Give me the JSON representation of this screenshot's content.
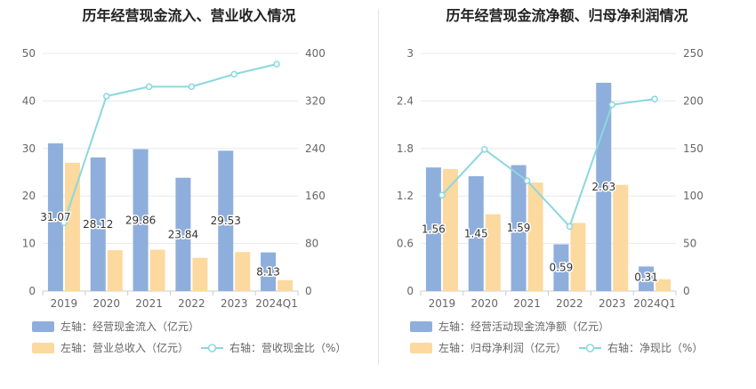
{
  "chart_data": [
    {
      "type": "bar",
      "title": "历年经营现金流入、营业收入情况",
      "categories": [
        "2019",
        "2020",
        "2021",
        "2022",
        "2023",
        "2024Q1"
      ],
      "left_axis": {
        "ticks": [
          "0",
          "10",
          "20",
          "30",
          "40",
          "50"
        ],
        "ylim": [
          0,
          50
        ]
      },
      "right_axis": {
        "ticks": [
          "0",
          "80",
          "160",
          "240",
          "320",
          "400"
        ],
        "ylim": [
          0,
          400
        ]
      },
      "series": [
        {
          "name": "左轴：经营现金流入（亿元）",
          "type": "bar",
          "axis": "left",
          "color": "#8eaedc",
          "values": [
            31.07,
            28.12,
            29.86,
            23.84,
            29.53,
            8.13
          ],
          "labels": [
            "31.07",
            "28.12",
            "29.86",
            "23.84",
            "29.53",
            "8.13"
          ]
        },
        {
          "name": "左轴：营业总收入（亿元）",
          "type": "bar",
          "axis": "left",
          "color": "#fcd99e",
          "values": [
            27.0,
            8.6,
            8.7,
            7.0,
            8.2,
            2.3
          ]
        },
        {
          "name": "右轴：营收现金比（%）",
          "type": "line",
          "axis": "right",
          "color": "#8ad8de",
          "values": [
            115,
            328,
            344,
            344,
            365,
            382
          ]
        }
      ],
      "grid": true,
      "legend_position": "bottom"
    },
    {
      "type": "bar",
      "title": "历年经营现金流净额、归母净利润情况",
      "categories": [
        "2019",
        "2020",
        "2021",
        "2022",
        "2023",
        "2024Q1"
      ],
      "left_axis": {
        "ticks": [
          "0",
          "0.6",
          "1.2",
          "1.8",
          "2.4",
          "3"
        ],
        "ylim": [
          0,
          3
        ]
      },
      "right_axis": {
        "ticks": [
          "0",
          "50",
          "100",
          "150",
          "200",
          "250"
        ],
        "ylim": [
          0,
          250
        ]
      },
      "series": [
        {
          "name": "左轴：经营活动现金流净额（亿元）",
          "type": "bar",
          "axis": "left",
          "color": "#8eaedc",
          "values": [
            1.56,
            1.45,
            1.59,
            0.59,
            2.63,
            0.31
          ],
          "labels": [
            "1.56",
            "1.45",
            "1.59",
            "0.59",
            "2.63",
            "0.31"
          ]
        },
        {
          "name": "左轴：归母净利润（亿元）",
          "type": "bar",
          "axis": "left",
          "color": "#fcd99e",
          "values": [
            1.54,
            0.97,
            1.37,
            0.86,
            1.34,
            0.15
          ]
        },
        {
          "name": "右轴：净现比（%）",
          "type": "line",
          "axis": "right",
          "color": "#8ad8de",
          "values": [
            101,
            149,
            116,
            68,
            196,
            202
          ]
        }
      ],
      "grid": true,
      "legend_position": "bottom"
    }
  ]
}
